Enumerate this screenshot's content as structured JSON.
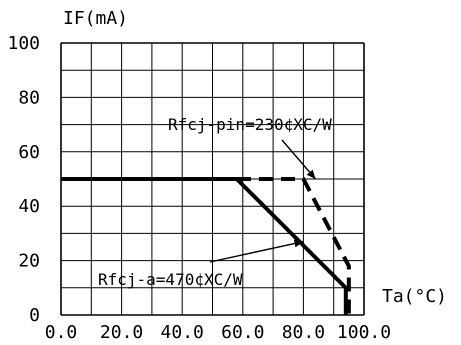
{
  "chart_data": {
    "type": "line",
    "title": "",
    "ylabel": "IF(mA)",
    "xlabel": "Ta(°C)",
    "xlim": [
      0,
      100
    ],
    "ylim": [
      0,
      100
    ],
    "grid": true,
    "x_ticks": [
      "0.0",
      "20.0",
      "40.0",
      "60.0",
      "80.0",
      "100.0"
    ],
    "y_ticks": [
      "0",
      "20",
      "40",
      "60",
      "80",
      "100"
    ],
    "series": [
      {
        "name": "Rfcj-a=470¢XC/W",
        "style": "solid",
        "points": [
          [
            0,
            50
          ],
          [
            58,
            50
          ],
          [
            94,
            10
          ],
          [
            94,
            0
          ]
        ]
      },
      {
        "name": "Rfcj-pin=230¢XC/W",
        "style": "dashed",
        "points": [
          [
            0,
            50
          ],
          [
            80,
            50
          ],
          [
            95,
            18
          ],
          [
            95,
            0
          ]
        ]
      }
    ],
    "annotations": [
      {
        "text": "Rfcj-pin=230¢XC/W",
        "series": 1,
        "arrow_to": [
          84,
          50
        ]
      },
      {
        "text": "Rfcj-a=470¢XC/W",
        "series": 0,
        "arrow_to": [
          80,
          27
        ]
      }
    ],
    "colors": {
      "line": "#000000",
      "grid": "#000000",
      "background": "#ffffff"
    }
  }
}
